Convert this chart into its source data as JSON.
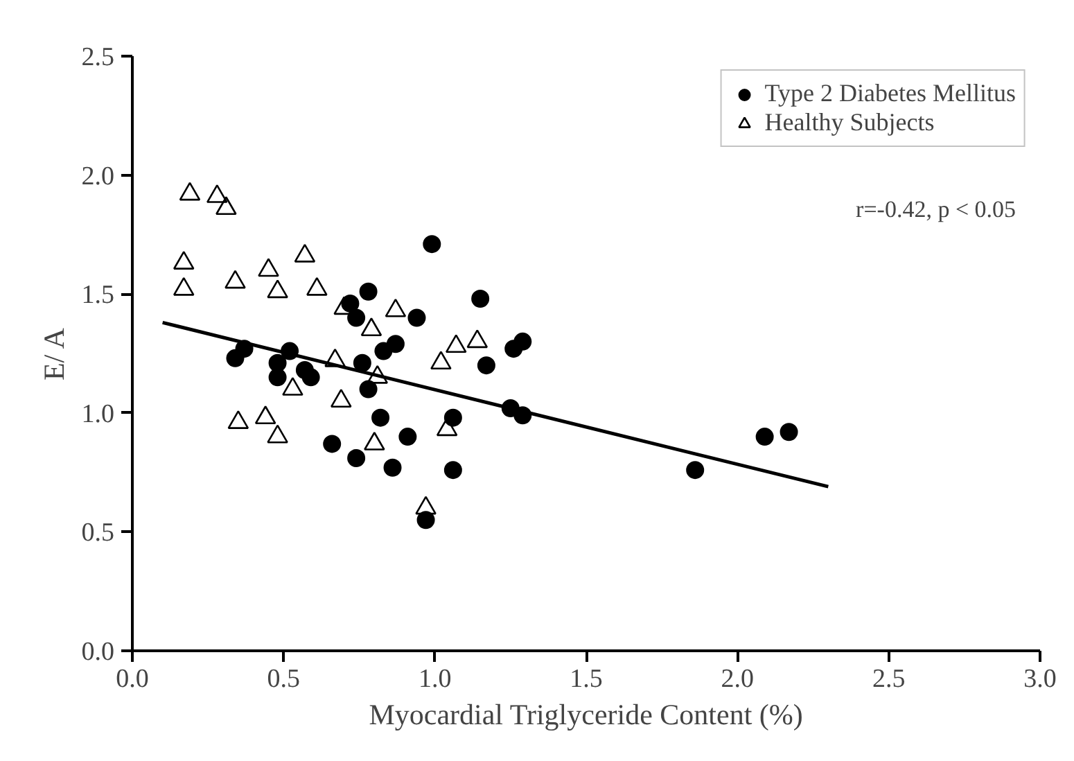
{
  "chart_data": {
    "type": "scatter",
    "xlabel": "Myocardial Triglyceride Content (%)",
    "ylabel": "E/ A",
    "xlim": [
      0,
      3
    ],
    "ylim": [
      0,
      2.5
    ],
    "xticks": [
      {
        "value": 0,
        "label": "0.0"
      },
      0.5,
      {
        "value": 1,
        "label": "1.0"
      },
      1.5,
      {
        "value": 2,
        "label": "2.0"
      },
      2.5,
      {
        "value": 3,
        "label": "3.0"
      }
    ],
    "yticks": [
      {
        "value": 0,
        "label": "0.0"
      },
      0.5,
      {
        "value": 1,
        "label": "1.0"
      },
      1.5,
      {
        "value": 2,
        "label": "2.0"
      },
      2.5
    ],
    "grid": false,
    "legend": "top right",
    "annotations": [
      "r=-0.42, p < 0.05"
    ],
    "series": [
      {
        "name": "Type 2 Diabetes Mellitus",
        "color": "#000000",
        "marker": "circle",
        "x": [
          0.78,
          0.72,
          0.74,
          0.87,
          0.83,
          0.37,
          0.34,
          0.52,
          0.48,
          0.48,
          0.57,
          0.59,
          0.76,
          0.78,
          0.82,
          0.66,
          0.74,
          0.86,
          0.91,
          0.99,
          1.15,
          0.94,
          1.29,
          1.26,
          1.17,
          1.25,
          1.29,
          1.06,
          1.06,
          0.97,
          1.86,
          2.09,
          2.17
        ],
        "values": [
          1.51,
          1.46,
          1.4,
          1.29,
          1.26,
          1.27,
          1.23,
          1.26,
          1.21,
          1.15,
          1.18,
          1.15,
          1.21,
          1.1,
          0.98,
          0.87,
          0.81,
          0.77,
          0.9,
          1.71,
          1.48,
          1.4,
          1.3,
          1.27,
          1.2,
          1.02,
          0.99,
          0.98,
          0.76,
          0.55,
          0.76,
          0.9,
          0.92
        ]
      },
      {
        "name": "Healthy Subjects",
        "color": "#000000",
        "marker": "triangle",
        "x": [
          0.19,
          0.28,
          0.31,
          0.17,
          0.17,
          0.34,
          0.45,
          0.48,
          0.57,
          0.61,
          0.7,
          0.87,
          0.79,
          0.67,
          0.81,
          0.53,
          0.69,
          0.35,
          0.44,
          0.48,
          0.8,
          1.07,
          1.14,
          1.02,
          1.04,
          0.97
        ],
        "values": [
          1.92,
          1.91,
          1.86,
          1.63,
          1.52,
          1.55,
          1.6,
          1.51,
          1.66,
          1.52,
          1.44,
          1.43,
          1.35,
          1.22,
          1.15,
          1.1,
          1.05,
          0.96,
          0.98,
          0.9,
          0.87,
          1.28,
          1.3,
          1.21,
          0.93,
          0.6
        ]
      },
      {
        "type": "line",
        "color": "#000000",
        "x": [
          0.1,
          2.3
        ],
        "values": [
          1.38,
          0.69
        ]
      }
    ]
  }
}
